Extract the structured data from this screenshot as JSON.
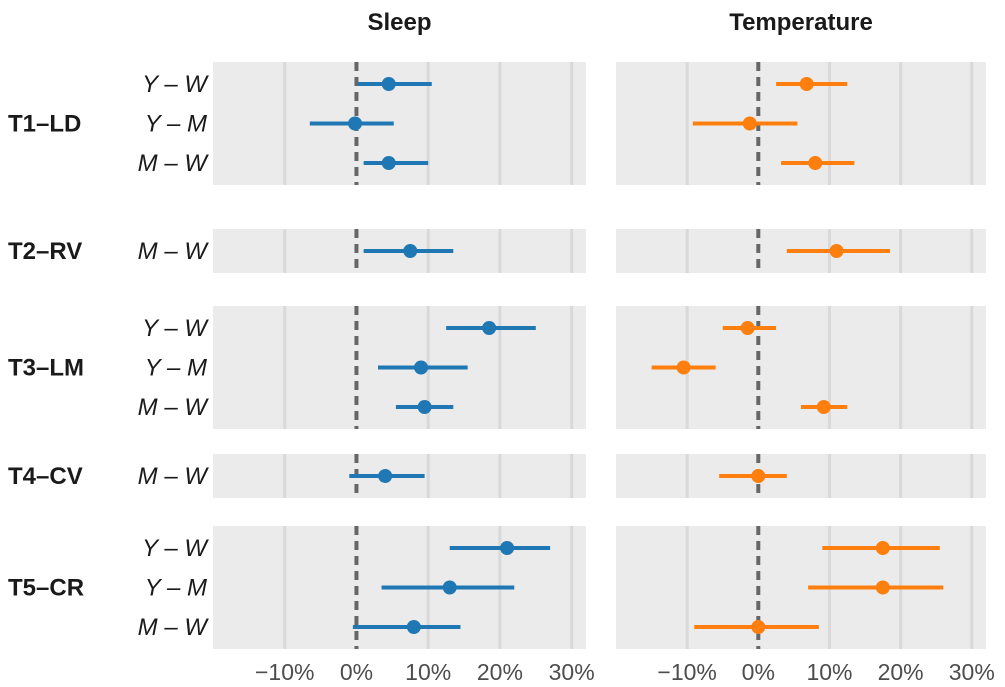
{
  "colors": {
    "sleep": "#1f77b4",
    "temperature": "#ff7f0e",
    "panel_bg": "#ebebeb",
    "grid": "#d9d9d9",
    "zero_line": "#666666"
  },
  "chart_data": {
    "type": "forest-plot",
    "x_ticks": [
      -10,
      0,
      10,
      20,
      30
    ],
    "x_tick_labels": [
      "−10%",
      "0%",
      "10%",
      "20%",
      "30%"
    ],
    "xlim": [
      -20,
      32
    ],
    "grid": true,
    "panels": [
      {
        "name": "Sleep",
        "color_key": "sleep"
      },
      {
        "name": "Temperature",
        "color_key": "temperature"
      }
    ],
    "groups": [
      {
        "label": "T1–LD",
        "rows": [
          {
            "label": "Y – W",
            "sleep": {
              "est": 4.5,
              "lo": 0.2,
              "hi": 10.5
            },
            "temperature": {
              "est": 6.8,
              "lo": 2.5,
              "hi": 12.5
            }
          },
          {
            "label": "Y – M",
            "sleep": {
              "est": -0.2,
              "lo": -6.5,
              "hi": 5.2
            },
            "temperature": {
              "est": -1.2,
              "lo": -9.2,
              "hi": 5.5
            }
          },
          {
            "label": "M – W",
            "sleep": {
              "est": 4.5,
              "lo": 1.0,
              "hi": 10.0
            },
            "temperature": {
              "est": 8.0,
              "lo": 3.2,
              "hi": 13.5
            }
          }
        ]
      },
      {
        "label": "T2–RV",
        "rows": [
          {
            "label": "M – W",
            "sleep": {
              "est": 7.5,
              "lo": 1.0,
              "hi": 13.5
            },
            "temperature": {
              "est": 11.0,
              "lo": 4.0,
              "hi": 18.5
            }
          }
        ]
      },
      {
        "label": "T3–LM",
        "rows": [
          {
            "label": "Y – W",
            "sleep": {
              "est": 18.5,
              "lo": 12.5,
              "hi": 25.0
            },
            "temperature": {
              "est": -1.5,
              "lo": -5.0,
              "hi": 2.5
            }
          },
          {
            "label": "Y – M",
            "sleep": {
              "est": 9.0,
              "lo": 3.0,
              "hi": 15.5
            },
            "temperature": {
              "est": -10.5,
              "lo": -15.0,
              "hi": -6.0
            }
          },
          {
            "label": "M – W",
            "sleep": {
              "est": 9.5,
              "lo": 5.5,
              "hi": 13.5
            },
            "temperature": {
              "est": 9.2,
              "lo": 6.0,
              "hi": 12.5
            }
          }
        ]
      },
      {
        "label": "T4–CV",
        "rows": [
          {
            "label": "M – W",
            "sleep": {
              "est": 4.0,
              "lo": -1.0,
              "hi": 9.5
            },
            "temperature": {
              "est": 0.0,
              "lo": -5.5,
              "hi": 4.0
            }
          }
        ]
      },
      {
        "label": "T5–CR",
        "rows": [
          {
            "label": "Y – W",
            "sleep": {
              "est": 21.0,
              "lo": 13.0,
              "hi": 27.0
            },
            "temperature": {
              "est": 17.5,
              "lo": 9.0,
              "hi": 25.5
            }
          },
          {
            "label": "Y – M",
            "sleep": {
              "est": 13.0,
              "lo": 3.5,
              "hi": 22.0
            },
            "temperature": {
              "est": 17.5,
              "lo": 7.0,
              "hi": 26.0
            }
          },
          {
            "label": "M – W",
            "sleep": {
              "est": 8.0,
              "lo": -0.5,
              "hi": 14.5
            },
            "temperature": {
              "est": 0.0,
              "lo": -9.0,
              "hi": 8.5
            }
          }
        ]
      }
    ]
  }
}
